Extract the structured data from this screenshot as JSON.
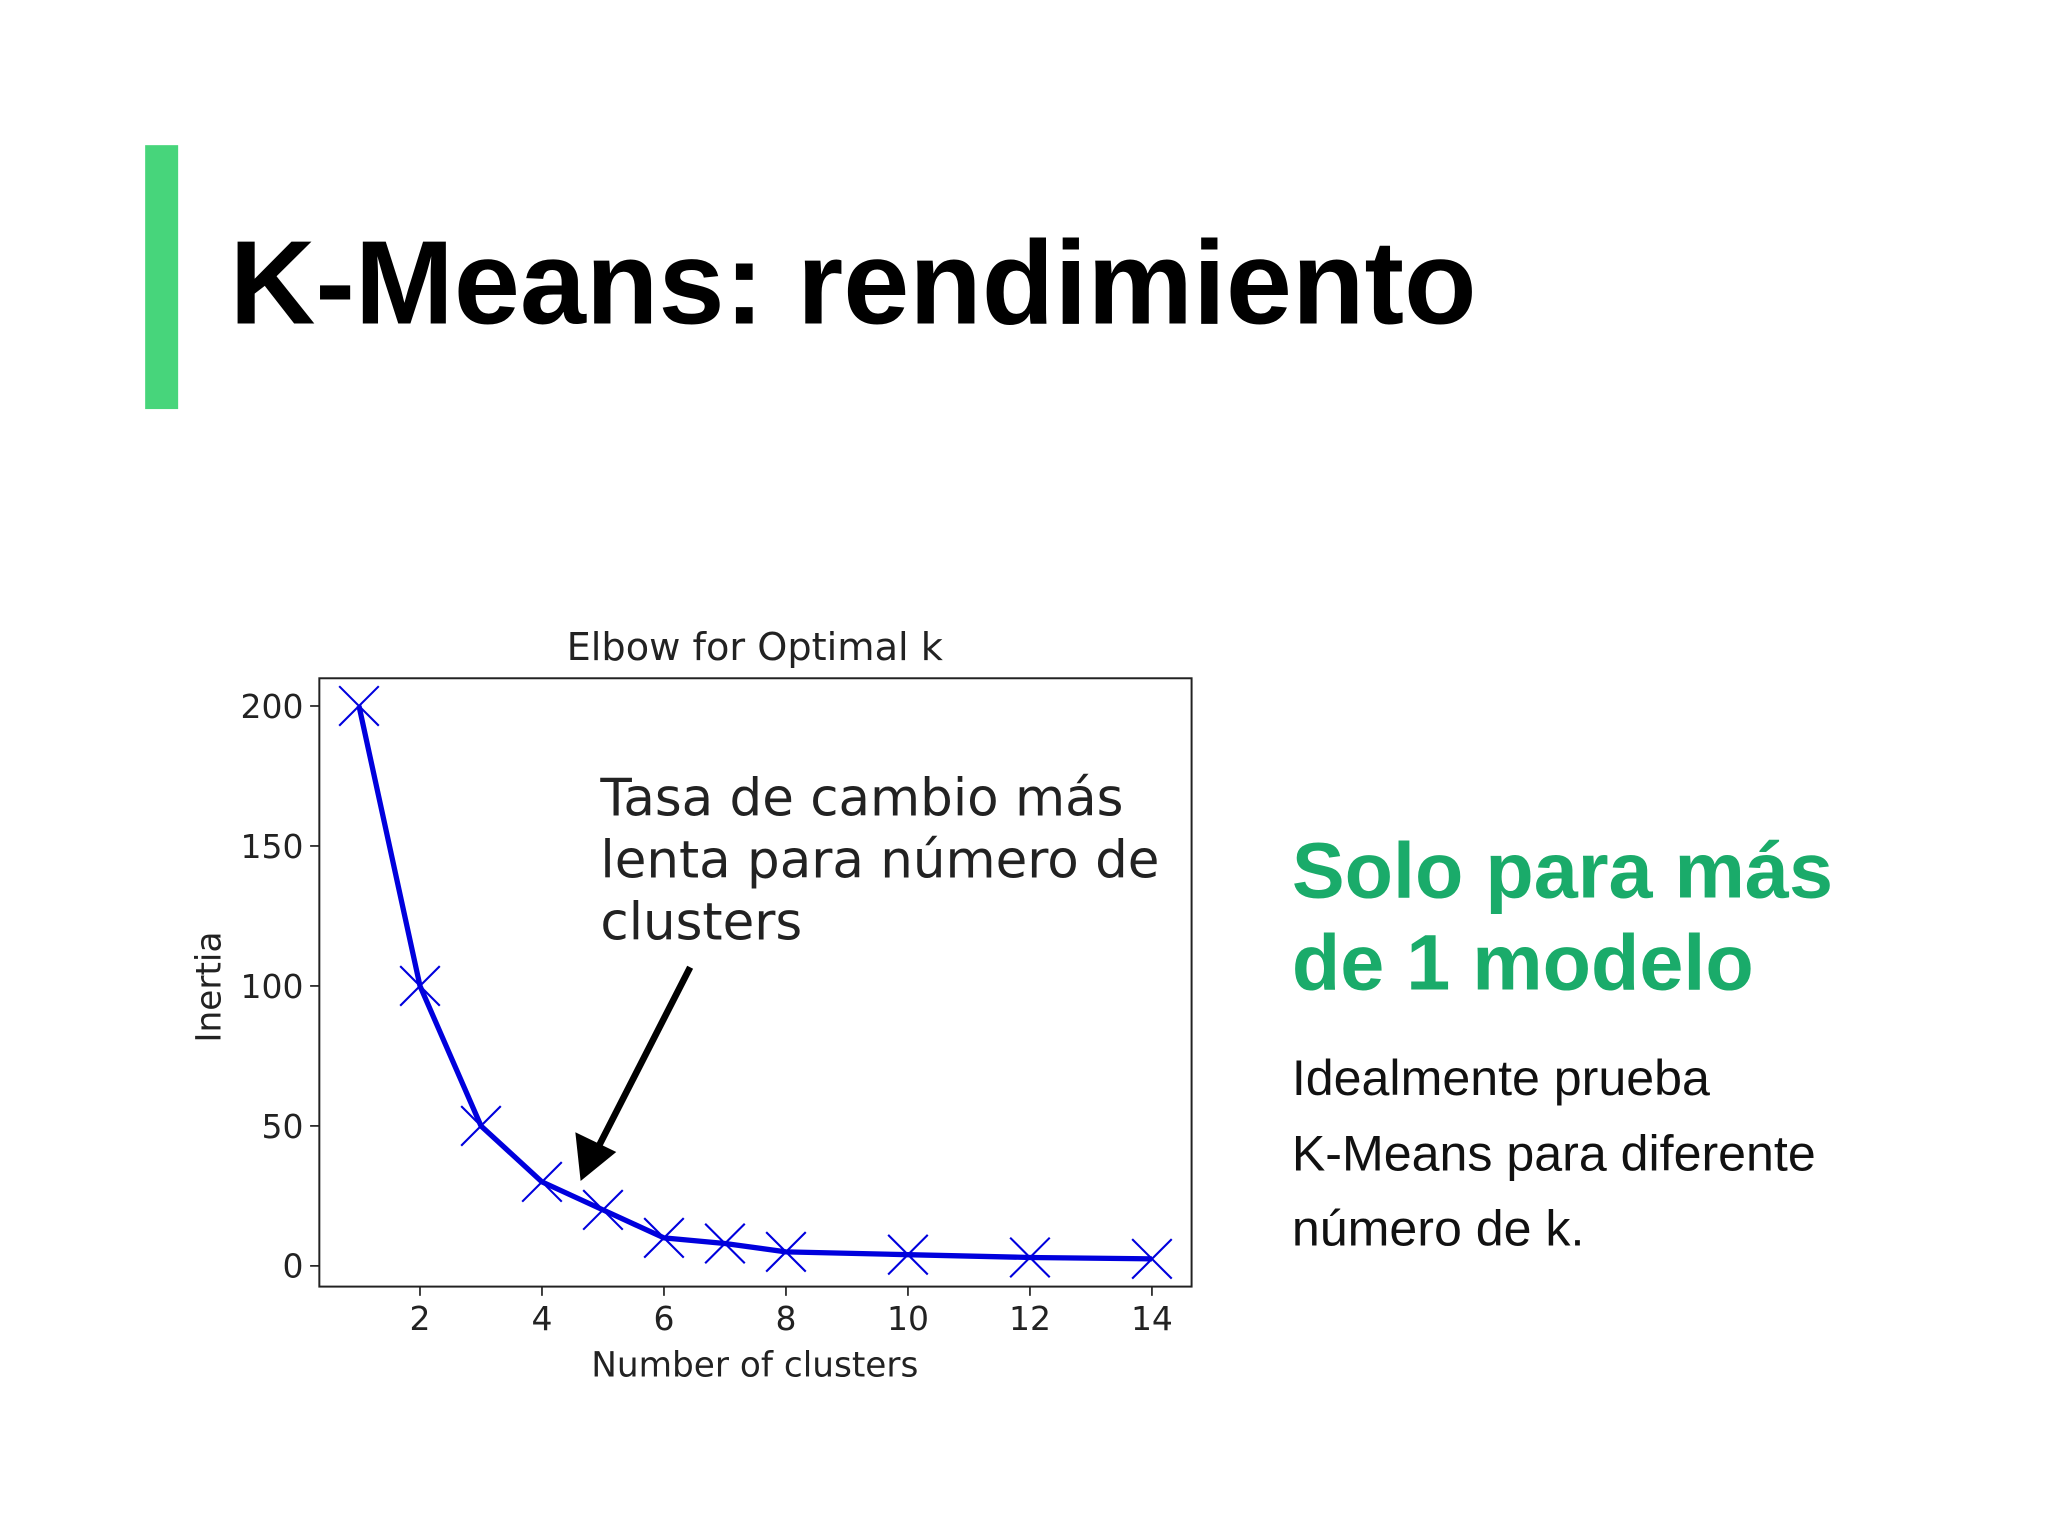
{
  "header": {
    "title": "K-Means: rendimiento"
  },
  "chart_data": {
    "type": "line",
    "title": "Elbow for Optimal k",
    "x_label": "Number of clusters",
    "y_label": "Inertia",
    "x": [
      1,
      2,
      3,
      4,
      5,
      6,
      7,
      8,
      10,
      12,
      14
    ],
    "values": [
      200,
      100,
      50,
      30,
      20,
      10,
      8,
      5,
      4,
      3,
      2.5
    ],
    "color": "#0000dd",
    "xlim": [
      0.35,
      14.65
    ],
    "ylim": [
      -7.4,
      209.9
    ],
    "xticks": [
      2,
      4,
      6,
      8,
      10,
      12,
      14
    ],
    "yticks": [
      0,
      50,
      100,
      150,
      200
    ],
    "annotation": [
      "Tasa de cambio más",
      "lenta para número de",
      "clusters"
    ]
  },
  "side": {
    "heading": [
      "Solo para más",
      "de 1 modelo"
    ],
    "body": [
      "Idealmente prueba",
      "K-Means para diferente",
      "número de k."
    ]
  }
}
